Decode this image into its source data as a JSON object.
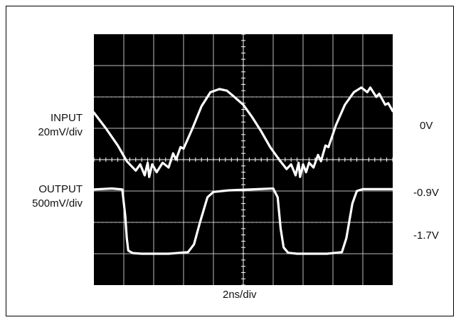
{
  "labels": {
    "input_name": "INPUT",
    "input_scale": "20mV/div",
    "output_name": "OUTPUT",
    "output_scale": "500mV/div",
    "right_top": "0V",
    "right_mid": "-0.9V",
    "right_bot": "-1.7V",
    "xlabel": "2ns/div"
  },
  "colors": {
    "screen": "#000000",
    "grid": "#bdbdbd",
    "trace": "#ffffff"
  },
  "chart_data": {
    "type": "line",
    "title": "",
    "xlabel": "2ns/div",
    "grid": true,
    "divisions": {
      "x": 10,
      "y": 8
    },
    "xlim": [
      0,
      10
    ],
    "ylim": [
      0,
      8
    ],
    "series": [
      {
        "name": "INPUT",
        "scale": "20mV/div",
        "points": [
          [
            0,
            5.5
          ],
          [
            0.4,
            5.0
          ],
          [
            0.8,
            4.45
          ],
          [
            1.1,
            3.95
          ],
          [
            1.4,
            3.65
          ],
          [
            1.55,
            3.85
          ],
          [
            1.7,
            3.5
          ],
          [
            1.8,
            3.9
          ],
          [
            1.85,
            3.45
          ],
          [
            1.95,
            3.85
          ],
          [
            2.1,
            3.6
          ],
          [
            2.3,
            3.9
          ],
          [
            2.5,
            3.75
          ],
          [
            2.65,
            4.2
          ],
          [
            2.75,
            4.0
          ],
          [
            2.9,
            4.4
          ],
          [
            3.0,
            4.35
          ],
          [
            3.3,
            5.0
          ],
          [
            3.6,
            5.7
          ],
          [
            3.9,
            6.15
          ],
          [
            4.2,
            6.25
          ],
          [
            4.45,
            6.2
          ],
          [
            4.7,
            6.0
          ],
          [
            5.0,
            5.75
          ],
          [
            5.3,
            5.35
          ],
          [
            5.6,
            4.9
          ],
          [
            5.9,
            4.4
          ],
          [
            6.2,
            4.0
          ],
          [
            6.45,
            3.7
          ],
          [
            6.6,
            3.85
          ],
          [
            6.75,
            3.5
          ],
          [
            6.85,
            3.9
          ],
          [
            6.9,
            3.45
          ],
          [
            7.0,
            3.85
          ],
          [
            7.1,
            3.6
          ],
          [
            7.2,
            3.9
          ],
          [
            7.35,
            3.75
          ],
          [
            7.5,
            4.15
          ],
          [
            7.6,
            3.95
          ],
          [
            7.75,
            4.45
          ],
          [
            7.85,
            4.4
          ],
          [
            8.1,
            5.1
          ],
          [
            8.4,
            5.75
          ],
          [
            8.7,
            6.15
          ],
          [
            8.95,
            6.3
          ],
          [
            9.15,
            6.15
          ],
          [
            9.25,
            6.3
          ],
          [
            9.45,
            6.0
          ],
          [
            9.55,
            6.1
          ],
          [
            9.75,
            5.75
          ],
          [
            9.85,
            5.8
          ],
          [
            10.0,
            5.55
          ]
        ]
      },
      {
        "name": "OUTPUT",
        "scale": "500mV/div",
        "points": [
          [
            0,
            3.05
          ],
          [
            0.6,
            3.08
          ],
          [
            0.95,
            3.05
          ],
          [
            1.05,
            2.2
          ],
          [
            1.1,
            1.5
          ],
          [
            1.15,
            1.1
          ],
          [
            1.3,
            1.02
          ],
          [
            1.6,
            1.0
          ],
          [
            2.5,
            1.0
          ],
          [
            3.15,
            1.05
          ],
          [
            3.35,
            1.3
          ],
          [
            3.55,
            2.0
          ],
          [
            3.8,
            2.8
          ],
          [
            4.0,
            2.97
          ],
          [
            4.5,
            3.02
          ],
          [
            5.5,
            3.06
          ],
          [
            6.0,
            3.08
          ],
          [
            6.15,
            2.8
          ],
          [
            6.25,
            1.8
          ],
          [
            6.35,
            1.2
          ],
          [
            6.5,
            1.03
          ],
          [
            6.8,
            1.0
          ],
          [
            7.8,
            1.0
          ],
          [
            8.3,
            1.05
          ],
          [
            8.45,
            1.5
          ],
          [
            8.65,
            2.6
          ],
          [
            8.8,
            3.0
          ],
          [
            9.0,
            3.06
          ],
          [
            10.0,
            3.06
          ]
        ]
      }
    ]
  }
}
